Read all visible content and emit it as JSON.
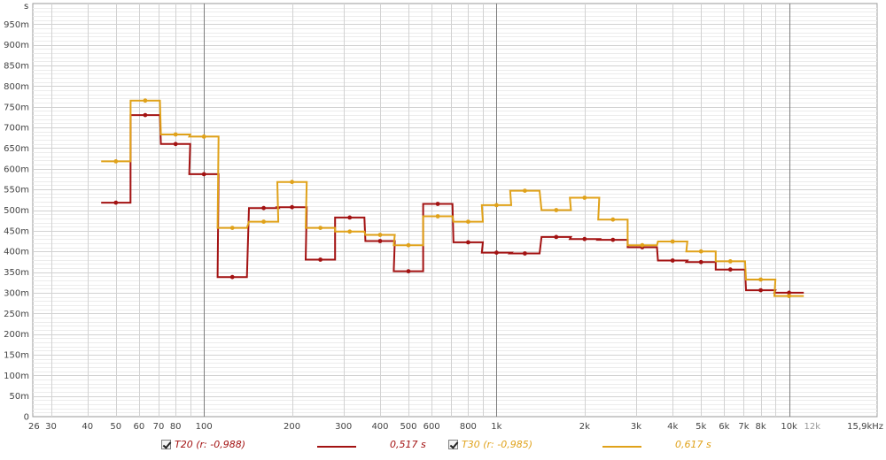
{
  "chart_data": {
    "type": "line",
    "step": true,
    "x_scale": "log",
    "y_unit": "s",
    "ylim": [
      0,
      1000
    ],
    "xlim": [
      26,
      20000
    ],
    "y_ticks": [
      "0",
      "50m",
      "100m",
      "150m",
      "200m",
      "250m",
      "300m",
      "350m",
      "400m",
      "450m",
      "500m",
      "550m",
      "600m",
      "650m",
      "700m",
      "750m",
      "800m",
      "850m",
      "900m",
      "950m"
    ],
    "x_ticks": [
      "26",
      "30",
      "40",
      "50",
      "60",
      "70",
      "80",
      "100",
      "200",
      "300",
      "400",
      "500",
      "600",
      "800",
      "1k",
      "2k",
      "3k",
      "4k",
      "5k",
      "6k",
      "7k",
      "8k",
      "10k",
      "12k",
      "15,9kHz"
    ],
    "grid": true,
    "legend_position": "bottom",
    "series": [
      {
        "name": "T20 (r: -0,988)",
        "summary": "0,517 s",
        "color": "#a31212",
        "x": [
          50,
          63,
          80,
          100,
          125,
          160,
          200,
          250,
          315,
          400,
          500,
          630,
          800,
          1000,
          1250,
          1600,
          2000,
          2500,
          3150,
          4000,
          5000,
          6300,
          8000,
          10000
        ],
        "values": [
          518,
          730,
          660,
          587,
          338,
          505,
          507,
          380,
          482,
          425,
          352,
          515,
          422,
          397,
          395,
          435,
          430,
          428,
          410,
          378,
          374,
          356,
          306,
          300
        ]
      },
      {
        "name": "T30 (r: -0,985)",
        "summary": "0,617 s",
        "color": "#e0a21a",
        "x": [
          50,
          63,
          80,
          100,
          125,
          160,
          200,
          250,
          315,
          400,
          500,
          630,
          800,
          1000,
          1250,
          1600,
          2000,
          2500,
          3150,
          4000,
          5000,
          6300,
          8000,
          10000
        ],
        "values": [
          618,
          765,
          683,
          678,
          457,
          472,
          568,
          457,
          448,
          440,
          415,
          485,
          472,
          512,
          547,
          500,
          530,
          477,
          415,
          424,
          400,
          376,
          332,
          292
        ]
      }
    ]
  }
}
